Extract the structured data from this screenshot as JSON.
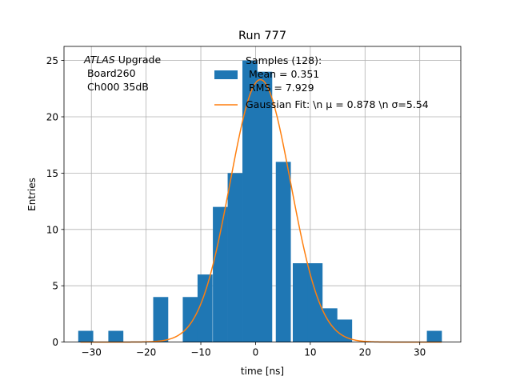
{
  "chart_data": {
    "type": "bar",
    "title": "Run 777",
    "xlabel": "time [ns]",
    "ylabel": "Entries",
    "xlim": [
      -35,
      37.5
    ],
    "ylim": [
      0,
      26.25
    ],
    "grid": true,
    "xticks": [
      -30,
      -20,
      -10,
      0,
      10,
      20,
      30
    ],
    "yticks": [
      0,
      5,
      10,
      15,
      20,
      25
    ],
    "bin_width": 2.7,
    "bins": [
      {
        "x0": -32.4,
        "count": 1
      },
      {
        "x0": -26.9,
        "count": 1
      },
      {
        "x0": -18.7,
        "count": 4
      },
      {
        "x0": -13.3,
        "count": 4
      },
      {
        "x0": -10.6,
        "count": 6
      },
      {
        "x0": -7.8,
        "count": 12
      },
      {
        "x0": -5.1,
        "count": 15
      },
      {
        "x0": -2.4,
        "count": 25
      },
      {
        "x0": 0.3,
        "count": 24
      },
      {
        "x0": 3.7,
        "count": 16
      },
      {
        "x0": 6.8,
        "count": 7
      },
      {
        "x0": 9.5,
        "count": 7
      },
      {
        "x0": 12.2,
        "count": 3
      },
      {
        "x0": 14.9,
        "count": 2
      },
      {
        "x0": 31.3,
        "count": 1
      }
    ],
    "fit": {
      "type": "gaussian",
      "mu": 0.878,
      "sigma": 5.54,
      "amplitude": 23.3
    },
    "series": [
      {
        "name": "Samples (128):\n Mean = 0.351\n RMS = 7.929",
        "color": "#1f77b4"
      },
      {
        "name": "Gaussian Fit: \\n μ = 0.878 \\n σ=5.54",
        "color": "#ff7f0e"
      }
    ],
    "legend_placement": "top-right",
    "annotation": {
      "atlas": "ATLAS",
      "line1": " Upgrade",
      "line2": " Board260",
      "line3": " Ch000 35dB"
    }
  }
}
